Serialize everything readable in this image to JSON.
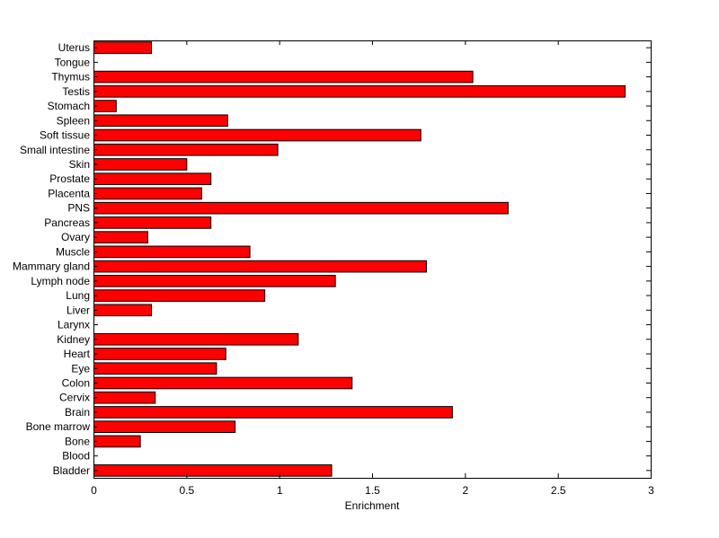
{
  "chart_data": {
    "type": "bar",
    "orientation": "horizontal",
    "title": "",
    "xlabel": "Enrichment",
    "ylabel": "",
    "xlim": [
      0,
      3
    ],
    "xticks": [
      "0",
      "0.5",
      "1",
      "1.5",
      "2",
      "2.5",
      "3"
    ],
    "grid": false,
    "legend": false,
    "bar_color": "#ff0000",
    "bar_edge_color": "#000000",
    "categories": [
      "Bladder",
      "Blood",
      "Bone",
      "Bone marrow",
      "Brain",
      "Cervix",
      "Colon",
      "Eye",
      "Heart",
      "Kidney",
      "Larynx",
      "Liver",
      "Lung",
      "Lymph node",
      "Mammary gland",
      "Muscle",
      "Ovary",
      "Pancreas",
      "PNS",
      "Placenta",
      "Prostate",
      "Skin",
      "Small intestine",
      "Soft tissue",
      "Spleen",
      "Stomach",
      "Testis",
      "Thymus",
      "Tongue",
      "Uterus"
    ],
    "values": [
      1.28,
      0,
      0.25,
      0.76,
      1.93,
      0.33,
      1.39,
      0.66,
      0.71,
      1.1,
      0,
      0.31,
      0.92,
      1.3,
      1.79,
      0.84,
      0.29,
      0.63,
      2.23,
      0.58,
      0.63,
      0.5,
      0.99,
      1.76,
      0.72,
      0.12,
      2.86,
      2.04,
      0,
      0.31
    ]
  }
}
